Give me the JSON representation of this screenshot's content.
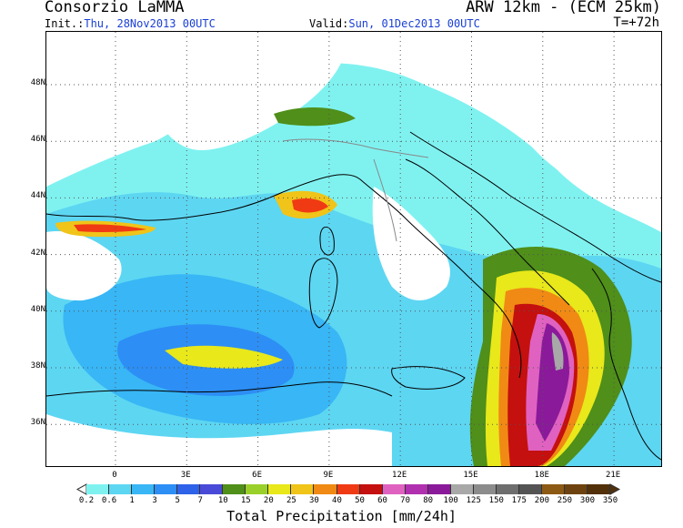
{
  "header": {
    "org": "Consorzio LaMMA",
    "model": "ARW 12km - (ECM 25km)",
    "init_label": "Init.:",
    "init_value": "Thu, 28Nov2013 00UTC",
    "valid_label": "Valid:",
    "valid_value": "Sun, 01Dec2013 00UTC",
    "step": "T=+72h"
  },
  "map": {
    "lat_labels": [
      "48N",
      "46N",
      "44N",
      "42N",
      "40N",
      "38N",
      "36N"
    ],
    "lon_labels": [
      "0",
      "3E",
      "6E",
      "9E",
      "12E",
      "15E",
      "18E",
      "21E"
    ],
    "grid": "dotted"
  },
  "colorbar": {
    "title": "Total Precipitation [mm/24h]",
    "labels": [
      "0.2",
      "0.6",
      "1",
      "3",
      "5",
      "7",
      "10",
      "15",
      "20",
      "25",
      "30",
      "40",
      "50",
      "60",
      "70",
      "80",
      "100",
      "125",
      "150",
      "175",
      "200",
      "250",
      "300",
      "350"
    ],
    "colors": [
      "#7ff2f0",
      "#5dd6f2",
      "#38b6f5",
      "#2d8ef5",
      "#2e62e8",
      "#4a4ad8",
      "#4f8f1a",
      "#9ad02a",
      "#e8e81a",
      "#f0c418",
      "#f08a14",
      "#f03a14",
      "#c4100e",
      "#e062c0",
      "#b030b0",
      "#8a1a9a",
      "#a8a8a8",
      "#8c8c8c",
      "#6e6e6e",
      "#545454",
      "#8c5a14",
      "#6e420e",
      "#52300a"
    ]
  }
}
